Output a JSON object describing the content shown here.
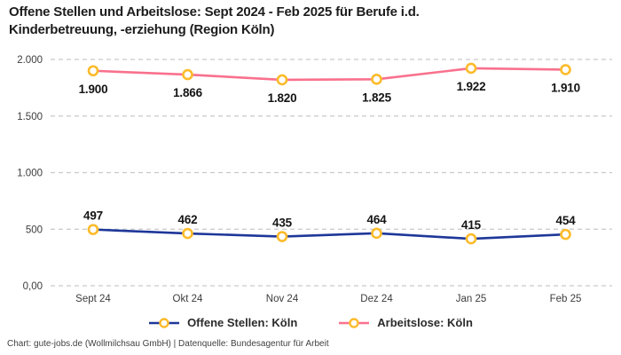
{
  "title": "Offene Stellen und Arbeitslose: Sept 2024 - Feb 2025 für Berufe i.d. Kinderbetreuung, -erziehung (Region Köln)",
  "footer": "Chart: gute-jobs.de (Wollmilchsau GmbH) | Datenquelle: Bundesagentur für Arbeit",
  "colors": {
    "open_positions_line": "#1e3799",
    "unemployed_line": "#f9718d",
    "marker_ring": "#fcbb2a",
    "marker_fill": "#ffffff",
    "gridline": "#c9c9c9",
    "axis_text": "#3c3c3c",
    "data_label": "#141414"
  },
  "chart_data": {
    "type": "line",
    "title": "Offene Stellen und Arbeitslose: Sept 2024 - Feb 2025 für Berufe i.d. Kinderbetreuung, -erziehung (Region Köln)",
    "categories": [
      "Sept 24",
      "Okt 24",
      "Nov 24",
      "Dez 24",
      "Jan 25",
      "Feb 25"
    ],
    "series": [
      {
        "name": "Offene Stellen: Köln",
        "color": "#1e3799",
        "values": [
          497,
          462,
          435,
          464,
          415,
          454
        ],
        "labels": [
          "497",
          "462",
          "435",
          "464",
          "415",
          "454"
        ],
        "label_position": "above"
      },
      {
        "name": "Arbeitslose: Köln",
        "color": "#f9718d",
        "values": [
          1900,
          1866,
          1820,
          1825,
          1922,
          1910
        ],
        "labels": [
          "1.900",
          "1.866",
          "1.820",
          "1.825",
          "1.922",
          "1.910"
        ],
        "label_position": "below"
      }
    ],
    "y_ticks": [
      {
        "value": 0,
        "label": "0,00"
      },
      {
        "value": 500,
        "label": "500"
      },
      {
        "value": 1000,
        "label": "1.000"
      },
      {
        "value": 1500,
        "label": "1.500"
      },
      {
        "value": 2000,
        "label": "2.000"
      }
    ],
    "ylim": [
      0,
      2000
    ],
    "xlabel": "",
    "ylabel": "",
    "grid": "horizontal-dashed",
    "legend_position": "bottom",
    "marker": {
      "fill": "#ffffff",
      "stroke": "#fcbb2a"
    }
  }
}
